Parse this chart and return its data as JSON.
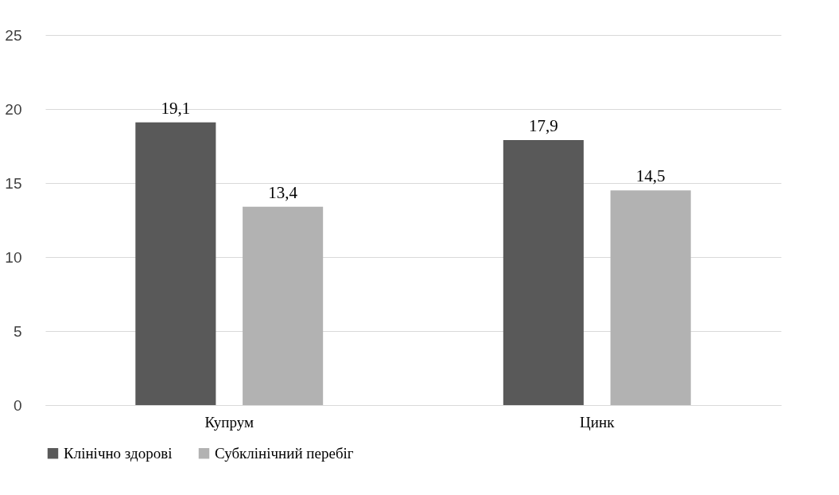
{
  "chart_data": {
    "type": "bar",
    "categories": [
      "Купрум",
      "Цинк"
    ],
    "series": [
      {
        "name": "Клінічно здорові",
        "color": "#595959",
        "values": [
          19.1,
          17.9
        ],
        "value_labels": [
          "19,1",
          "17,9"
        ]
      },
      {
        "name": "Субклінічний перебіг",
        "color": "#b2b2b2",
        "values": [
          13.4,
          14.5
        ],
        "value_labels": [
          "13,4",
          "14,5"
        ]
      }
    ],
    "ylim": [
      0,
      25
    ],
    "yticks": [
      0,
      5,
      10,
      15,
      20,
      25
    ],
    "grid": "y",
    "legend": "bottom"
  }
}
